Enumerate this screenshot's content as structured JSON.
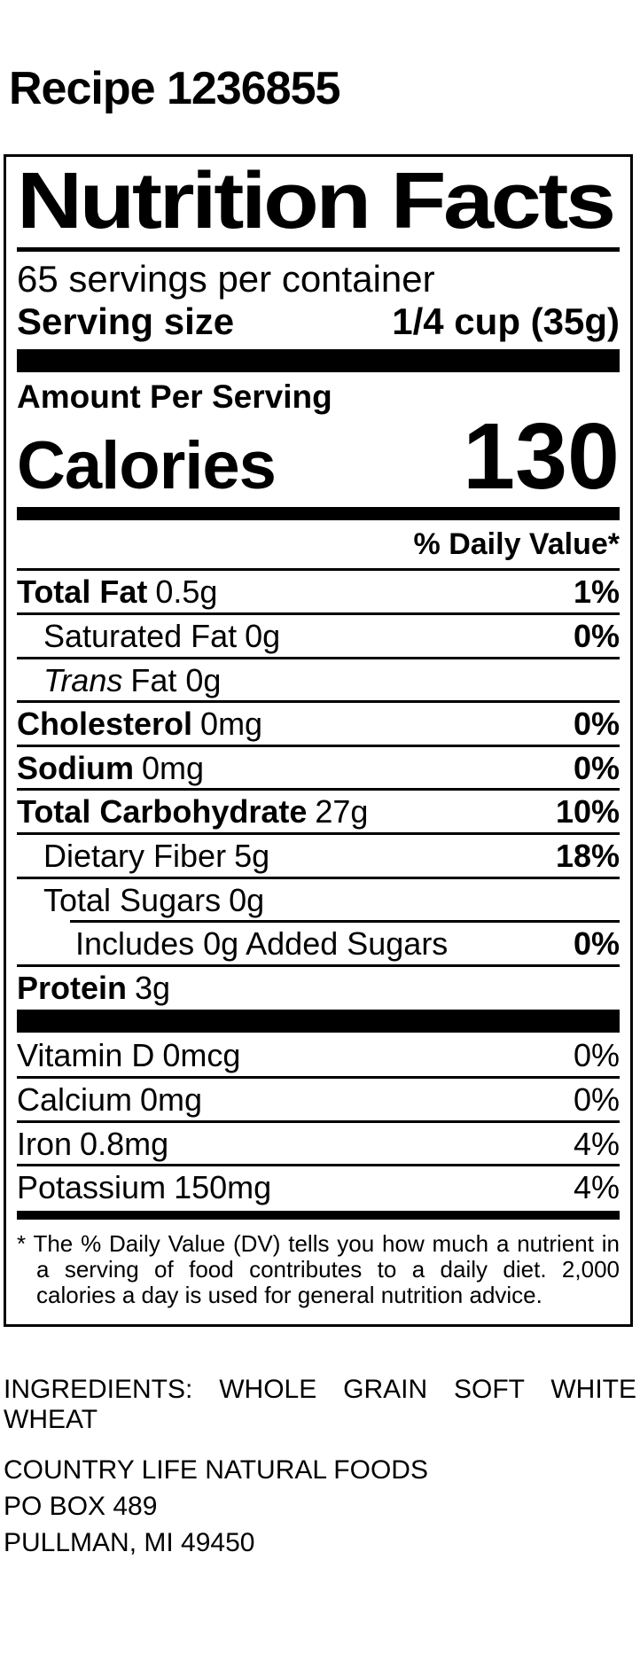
{
  "colors": {
    "text": "#000000",
    "background": "#ffffff"
  },
  "header": {
    "recipe_title": "Recipe 1236855"
  },
  "nutrition_label": {
    "title": "Nutrition Facts",
    "servings_per_container": "65 servings per container",
    "serving_size": {
      "label": "Serving size",
      "value": "1/4 cup (35g)"
    },
    "amount_per_serving": "Amount Per Serving",
    "calories": {
      "label": "Calories",
      "value": "130"
    },
    "daily_value_header": "% Daily Value*",
    "nutrients": [
      {
        "name": "Total Fat",
        "amount": "0.5g",
        "dv": "1%"
      },
      {
        "name": "Saturated Fat",
        "amount": "0g",
        "dv": "0%"
      },
      {
        "name": "Trans",
        "amount": "Fat 0g",
        "dv": ""
      },
      {
        "name": "Cholesterol",
        "amount": "0mg",
        "dv": "0%"
      },
      {
        "name": "Sodium",
        "amount": "0mg",
        "dv": "0%"
      },
      {
        "name": "Total Carbohydrate",
        "amount": "27g",
        "dv": "10%"
      },
      {
        "name": "Dietary Fiber",
        "amount": "5g",
        "dv": "18%"
      },
      {
        "name": "Total Sugars",
        "amount": "0g",
        "dv": ""
      },
      {
        "name": "Includes 0g Added Sugars",
        "amount": "",
        "dv": "0%"
      },
      {
        "name": "Protein",
        "amount": "3g",
        "dv": ""
      }
    ],
    "vitamins": [
      {
        "name": "Vitamin D",
        "amount": "0mcg",
        "dv": "0%"
      },
      {
        "name": "Calcium",
        "amount": "0mg",
        "dv": "0%"
      },
      {
        "name": "Iron",
        "amount": "0.8mg",
        "dv": "4%"
      },
      {
        "name": "Potassium",
        "amount": "150mg",
        "dv": "4%"
      }
    ],
    "footnote": "* The % Daily Value (DV) tells you how much a nutrient in a serving of food contributes to a daily diet. 2,000 calories a day is used for general nutrition advice."
  },
  "ingredients": "INGREDIENTS: WHOLE GRAIN SOFT WHITE WHEAT",
  "manufacturer": {
    "name": "COUNTRY LIFE NATURAL FOODS",
    "address_line1": "PO BOX 489",
    "address_line2": "PULLMAN, MI 49450"
  }
}
